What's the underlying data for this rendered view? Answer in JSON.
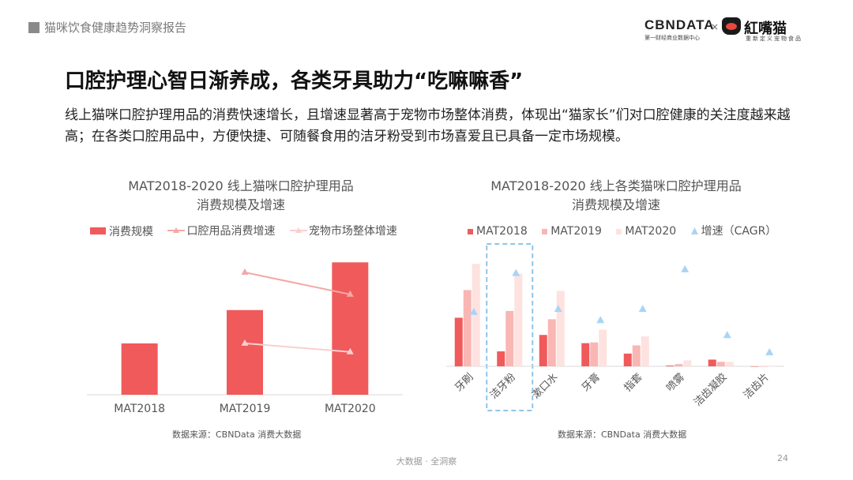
{
  "header": {
    "section": "猫咪饮食健康趋势洞察报告"
  },
  "logos": {
    "cbndata": "CBNDATA",
    "cbndata_sub": "第一财经商业数据中心",
    "x": "×",
    "partner": "紅嘴猫",
    "partner_sub": "重新定义宠物食品"
  },
  "title": "口腔护理心智日渐养成，各类牙具助力“吃嘛嘛香”",
  "description": "线上猫咪口腔护理用品的消费快速增长，且增速显著高于宠物市场整体消费，体现出“猫家长”们对口腔健康的关注度越来越高；在各类口腔用品中，方便快捷、可随餐食用的洁牙粉受到市场喜爱且已具备一定市场规模。",
  "colors": {
    "mat2018": "#f05a5b",
    "mat2019": "#f9b6b3",
    "mat2020": "#fde2df",
    "cagr": "#a9d4f5",
    "line1": "#f4a8a6",
    "line2": "#f8d0ce",
    "highlight": "#8ec5ec"
  },
  "chart_data": [
    {
      "type": "bar",
      "title_line1": "MAT2018-2020 线上猫咪口腔护理用品",
      "title_line2": "消费规模及增速",
      "categories": [
        "MAT2018",
        "MAT2019",
        "MAT2020"
      ],
      "legend": [
        "消费规模",
        "口腔用品消费增速",
        "宠物市场整体增速"
      ],
      "series": [
        {
          "name": "消费规模",
          "type": "bar",
          "values": [
            1.0,
            1.65,
            2.58
          ]
        },
        {
          "name": "口腔用品消费增速",
          "type": "line",
          "values": [
            null,
            1.0,
            0.82
          ]
        },
        {
          "name": "宠物市场整体增速",
          "type": "line",
          "values": [
            null,
            0.42,
            0.35
          ]
        }
      ],
      "ylim": [
        0,
        3
      ],
      "source": "数据来源：CBNData 消费大数据"
    },
    {
      "type": "bar",
      "title_line1": "MAT2018-2020 线上各类猫咪口腔护理用品",
      "title_line2": "消费规模及增速",
      "categories": [
        "牙刷",
        "洁牙粉",
        "漱口水",
        "牙膏",
        "指套",
        "喷雾",
        "洁齿凝胶",
        "洁齿片"
      ],
      "legend": [
        "MAT2018",
        "MAT2019",
        "MAT2020",
        "增速（CAGR）"
      ],
      "series": [
        {
          "name": "MAT2018",
          "type": "bar",
          "values": [
            65,
            20,
            42,
            31,
            17,
            1,
            9,
            0
          ]
        },
        {
          "name": "MAT2019",
          "type": "bar",
          "values": [
            102,
            74,
            63,
            32,
            28,
            3,
            6,
            0
          ]
        },
        {
          "name": "MAT2020",
          "type": "bar",
          "values": [
            137,
            124,
            101,
            49,
            40,
            8,
            6,
            0
          ]
        },
        {
          "name": "增速（CAGR）",
          "type": "scatter",
          "values": [
            73,
            125,
            77,
            62,
            77,
            130,
            42,
            19
          ]
        }
      ],
      "highlight": "洁牙粉",
      "ylim": [
        0,
        150
      ],
      "source": "数据来源：CBNData 消费大数据"
    }
  ],
  "footer": {
    "text": "大数据 · 全洞察",
    "page": "24"
  }
}
